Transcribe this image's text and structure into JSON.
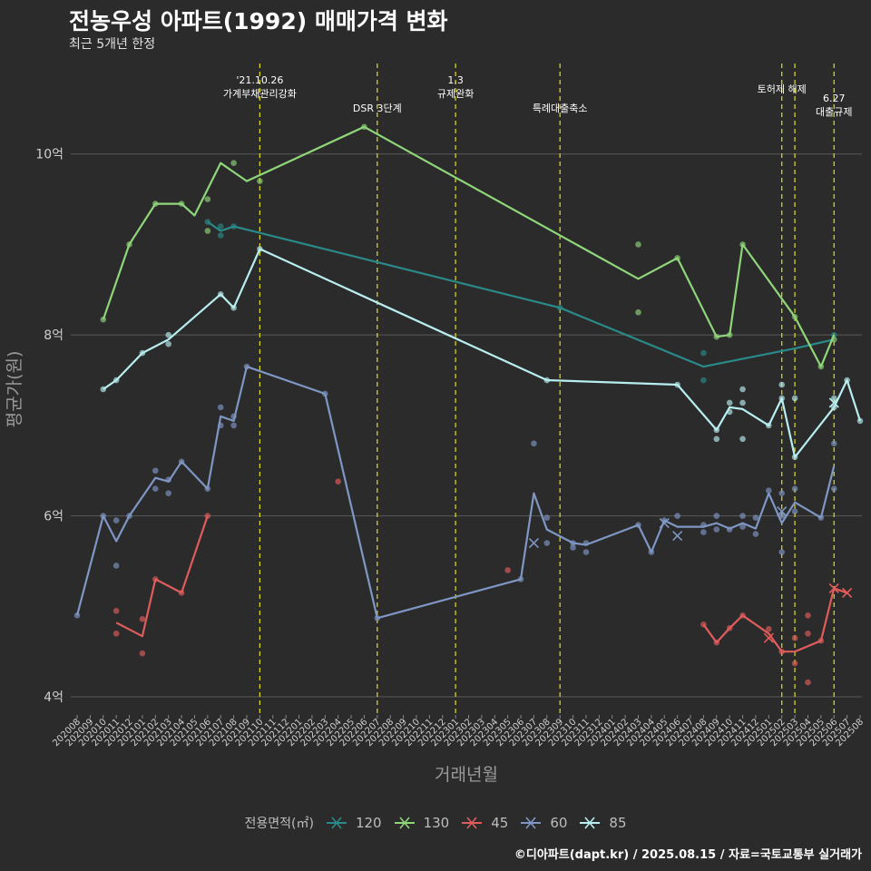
{
  "title": "전농우성 아파트(1992) 매매가격 변화",
  "subtitle": "최근 5개년 한정",
  "caption": "©디아파트(dapt.kr) / 2025.08.15 / 자료=국토교통부 실거래가",
  "legend_title": "전용면적(㎡)",
  "colors": {
    "120": "#2a8a8a",
    "130": "#8fd67a",
    "45": "#e05c5c",
    "60": "#7f97c4",
    "85": "#b8eef0",
    "vline": "#e0e020",
    "grid": "#5a5a5a"
  },
  "chart_data": {
    "type": "line",
    "xlabel": "거래년월",
    "ylabel": "평균가(원)",
    "ylim": [
      3.8,
      11.0
    ],
    "y_ticks": [
      4,
      6,
      8,
      10
    ],
    "y_tick_labels": [
      "4억",
      "6억",
      "8억",
      "10억"
    ],
    "x_categories": [
      "202008",
      "202009",
      "202010",
      "202011",
      "202012",
      "202101",
      "202102",
      "202103",
      "202104",
      "202105",
      "202106",
      "202107",
      "202108",
      "202109",
      "202110",
      "202111",
      "202112",
      "202201",
      "202202",
      "202203",
      "202204",
      "202205",
      "202206",
      "202207",
      "202208",
      "202209",
      "202210",
      "202211",
      "202212",
      "202301",
      "202302",
      "202303",
      "202304",
      "202305",
      "202306",
      "202307",
      "202308",
      "202309",
      "202310",
      "202311",
      "202312",
      "202401",
      "202402",
      "202403",
      "202404",
      "202405",
      "202406",
      "202407",
      "202408",
      "202409",
      "202410",
      "202411",
      "202412",
      "202501",
      "202502",
      "202503",
      "202504",
      "202505",
      "202506",
      "202507",
      "202508"
    ],
    "events": [
      {
        "x": "202110",
        "label": "'21.10.26\n가계부채관리강화"
      },
      {
        "x": "202207",
        "label": "DSR 3단계"
      },
      {
        "x": "202301",
        "label": "1.3\n규제완화"
      },
      {
        "x": "202309",
        "label": "특례대출축소"
      },
      {
        "x": "202502",
        "label": "토허제 해제"
      },
      {
        "x": "202503",
        "label": ""
      },
      {
        "x": "202506",
        "label": "6.27\n대출규제"
      }
    ],
    "series": [
      {
        "name": "120",
        "line": [
          [
            "202106",
            9.25
          ],
          [
            "202107",
            9.15
          ],
          [
            "202108",
            9.2
          ],
          [
            "202309",
            8.3
          ],
          [
            "202408",
            7.65
          ],
          [
            "202503",
            7.85
          ],
          [
            "202506",
            7.95
          ]
        ],
        "points": [
          [
            "202106",
            9.25
          ],
          [
            "202107",
            9.2
          ],
          [
            "202107",
            9.1
          ],
          [
            "202108",
            9.2
          ],
          [
            "202309",
            8.3
          ],
          [
            "202408",
            7.8
          ],
          [
            "202408",
            7.5
          ],
          [
            "202506",
            8.0
          ]
        ],
        "crosses": []
      },
      {
        "name": "130",
        "line": [
          [
            "202010",
            8.17
          ],
          [
            "202012",
            9.0
          ],
          [
            "202102",
            9.45
          ],
          [
            "202104",
            9.45
          ],
          [
            "202105",
            9.32
          ],
          [
            "202107",
            9.9
          ],
          [
            "202109",
            9.7
          ],
          [
            "202206",
            10.3
          ],
          [
            "202403",
            8.62
          ],
          [
            "202406",
            8.85
          ],
          [
            "202409",
            7.98
          ],
          [
            "202410",
            8.0
          ],
          [
            "202411",
            9.0
          ],
          [
            "202503",
            8.2
          ],
          [
            "202505",
            7.65
          ],
          [
            "202506",
            8.0
          ]
        ],
        "points": [
          [
            "202010",
            8.17
          ],
          [
            "202012",
            9.0
          ],
          [
            "202102",
            9.45
          ],
          [
            "202104",
            9.45
          ],
          [
            "202106",
            9.5
          ],
          [
            "202106",
            9.15
          ],
          [
            "202108",
            9.9
          ],
          [
            "202110",
            9.7
          ],
          [
            "202206",
            10.3
          ],
          [
            "202403",
            9.0
          ],
          [
            "202403",
            8.25
          ],
          [
            "202406",
            8.85
          ],
          [
            "202409",
            7.98
          ],
          [
            "202410",
            8.0
          ],
          [
            "202411",
            9.0
          ],
          [
            "202503",
            8.2
          ],
          [
            "202505",
            7.65
          ],
          [
            "202506",
            7.95
          ]
        ],
        "crosses": []
      },
      {
        "name": "45",
        "line": [
          [
            "202011",
            4.82
          ],
          [
            "202101",
            4.67
          ],
          [
            "202102",
            5.3
          ],
          [
            "202104",
            5.15
          ],
          [
            "202106",
            6.0
          ]
        ],
        "line2": [
          [
            "202408",
            4.8
          ],
          [
            "202409",
            4.6
          ],
          [
            "202410",
            4.76
          ],
          [
            "202411",
            4.9
          ],
          [
            "202501",
            4.7
          ],
          [
            "202502",
            4.5
          ],
          [
            "202503",
            4.5
          ],
          [
            "202505",
            4.62
          ],
          [
            "202506",
            5.2
          ],
          [
            "202507",
            5.15
          ]
        ],
        "points": [
          [
            "202011",
            4.95
          ],
          [
            "202011",
            4.7
          ],
          [
            "202101",
            4.48
          ],
          [
            "202101",
            4.86
          ],
          [
            "202102",
            5.3
          ],
          [
            "202104",
            5.15
          ],
          [
            "202106",
            6.0
          ],
          [
            "202204",
            6.38
          ],
          [
            "202305",
            5.4
          ],
          [
            "202408",
            4.8
          ],
          [
            "202409",
            4.6
          ],
          [
            "202410",
            4.76
          ],
          [
            "202411",
            4.9
          ],
          [
            "202501",
            4.75
          ],
          [
            "202502",
            4.5
          ],
          [
            "202503",
            4.65
          ],
          [
            "202503",
            4.37
          ],
          [
            "202504",
            4.9
          ],
          [
            "202504",
            4.7
          ],
          [
            "202504",
            4.16
          ],
          [
            "202505",
            4.62
          ]
        ],
        "crosses": [
          [
            "202501",
            4.65
          ],
          [
            "202506",
            5.2
          ],
          [
            "202507",
            5.15
          ]
        ]
      },
      {
        "name": "60",
        "line": [
          [
            "202008",
            4.9
          ],
          [
            "202010",
            6.0
          ],
          [
            "202011",
            5.72
          ],
          [
            "202012",
            6.0
          ],
          [
            "202102",
            6.42
          ],
          [
            "202103",
            6.38
          ],
          [
            "202104",
            6.6
          ],
          [
            "202106",
            6.3
          ],
          [
            "202107",
            7.1
          ],
          [
            "202108",
            7.05
          ],
          [
            "202109",
            7.65
          ],
          [
            "202203",
            7.35
          ],
          [
            "202207",
            4.87
          ],
          [
            "202306",
            5.3
          ],
          [
            "202307",
            6.25
          ],
          [
            "202308",
            5.85
          ],
          [
            "202310",
            5.7
          ],
          [
            "202311",
            5.68
          ],
          [
            "202403",
            5.9
          ],
          [
            "202404",
            5.6
          ],
          [
            "202405",
            5.95
          ],
          [
            "202406",
            5.88
          ],
          [
            "202408",
            5.88
          ],
          [
            "202409",
            5.92
          ],
          [
            "202410",
            5.86
          ],
          [
            "202411",
            5.92
          ],
          [
            "202412",
            5.86
          ],
          [
            "202501",
            6.25
          ],
          [
            "202502",
            5.92
          ],
          [
            "202503",
            6.15
          ],
          [
            "202505",
            5.98
          ],
          [
            "202506",
            6.55
          ]
        ],
        "points": [
          [
            "202008",
            4.9
          ],
          [
            "202010",
            6.0
          ],
          [
            "202011",
            5.95
          ],
          [
            "202011",
            5.45
          ],
          [
            "202012",
            6.0
          ],
          [
            "202102",
            6.5
          ],
          [
            "202102",
            6.3
          ],
          [
            "202103",
            6.4
          ],
          [
            "202103",
            6.25
          ],
          [
            "202104",
            6.6
          ],
          [
            "202106",
            6.3
          ],
          [
            "202107",
            7.2
          ],
          [
            "202107",
            7.0
          ],
          [
            "202108",
            7.1
          ],
          [
            "202108",
            7.0
          ],
          [
            "202109",
            7.65
          ],
          [
            "202203",
            7.35
          ],
          [
            "202207",
            4.87
          ],
          [
            "202306",
            5.3
          ],
          [
            "202307",
            6.8
          ],
          [
            "202308",
            5.98
          ],
          [
            "202308",
            5.7
          ],
          [
            "202310",
            5.7
          ],
          [
            "202310",
            5.65
          ],
          [
            "202311",
            5.7
          ],
          [
            "202311",
            5.6
          ],
          [
            "202403",
            5.9
          ],
          [
            "202404",
            5.6
          ],
          [
            "202405",
            5.95
          ],
          [
            "202406",
            6.0
          ],
          [
            "202408",
            5.9
          ],
          [
            "202408",
            5.82
          ],
          [
            "202409",
            6.0
          ],
          [
            "202409",
            5.85
          ],
          [
            "202410",
            5.85
          ],
          [
            "202411",
            6.0
          ],
          [
            "202411",
            5.88
          ],
          [
            "202412",
            5.98
          ],
          [
            "202412",
            5.8
          ],
          [
            "202501",
            6.28
          ],
          [
            "202502",
            6.25
          ],
          [
            "202502",
            6.0
          ],
          [
            "202502",
            5.6
          ],
          [
            "202503",
            6.3
          ],
          [
            "202503",
            6.05
          ],
          [
            "202505",
            5.98
          ],
          [
            "202506",
            6.8
          ],
          [
            "202506",
            6.3
          ]
        ],
        "crosses": [
          [
            "202307",
            5.7
          ],
          [
            "202405",
            5.92
          ],
          [
            "202406",
            5.78
          ],
          [
            "202502",
            6.05
          ]
        ]
      },
      {
        "name": "85",
        "line": [
          [
            "202010",
            7.4
          ],
          [
            "202011",
            7.5
          ],
          [
            "202101",
            7.8
          ],
          [
            "202103",
            7.95
          ],
          [
            "202107",
            8.45
          ],
          [
            "202108",
            8.3
          ],
          [
            "202110",
            8.95
          ],
          [
            "202308",
            7.5
          ],
          [
            "202406",
            7.45
          ],
          [
            "202409",
            6.95
          ],
          [
            "202410",
            7.2
          ],
          [
            "202411",
            7.18
          ],
          [
            "202501",
            7.0
          ],
          [
            "202502",
            7.3
          ],
          [
            "202503",
            6.65
          ],
          [
            "202506",
            7.2
          ],
          [
            "202507",
            7.5
          ],
          [
            "202508",
            7.05
          ]
        ],
        "points": [
          [
            "202010",
            7.4
          ],
          [
            "202011",
            7.5
          ],
          [
            "202101",
            7.8
          ],
          [
            "202103",
            8.0
          ],
          [
            "202103",
            7.9
          ],
          [
            "202107",
            8.45
          ],
          [
            "202108",
            8.3
          ],
          [
            "202110",
            8.95
          ],
          [
            "202308",
            7.5
          ],
          [
            "202406",
            7.45
          ],
          [
            "202409",
            6.95
          ],
          [
            "202409",
            6.85
          ],
          [
            "202410",
            7.25
          ],
          [
            "202410",
            7.15
          ],
          [
            "202411",
            7.4
          ],
          [
            "202411",
            7.25
          ],
          [
            "202411",
            6.85
          ],
          [
            "202501",
            7.0
          ],
          [
            "202502",
            7.45
          ],
          [
            "202502",
            7.3
          ],
          [
            "202503",
            7.3
          ],
          [
            "202503",
            6.65
          ],
          [
            "202506",
            7.3
          ],
          [
            "202506",
            7.2
          ],
          [
            "202507",
            7.5
          ],
          [
            "202508",
            7.05
          ]
        ],
        "crosses": [
          [
            "202506",
            7.25
          ]
        ]
      }
    ]
  }
}
